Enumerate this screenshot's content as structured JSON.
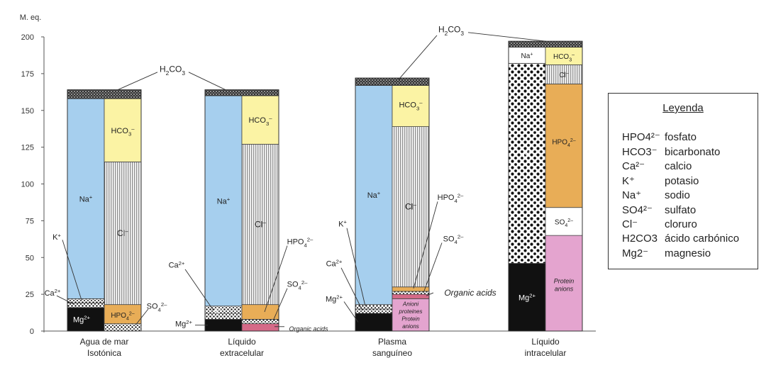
{
  "chart_data": {
    "type": "bar",
    "stacked": true,
    "ylabel": "M. eq.",
    "ylim": [
      0,
      200
    ],
    "yticks": [
      "0",
      "25",
      "50",
      "75",
      "100",
      "125",
      "150",
      "175",
      "200"
    ],
    "grid": false,
    "categories": [
      {
        "line1": "Agua de mar",
        "line2": "Isotónica"
      },
      {
        "line1": "Líquido",
        "line2": "extracelular"
      },
      {
        "line1": "Plasma",
        "line2": "sanguíneo"
      },
      {
        "line1": "Líquido",
        "line2": "intracelular"
      }
    ],
    "stacks": [
      {
        "cations": [
          {
            "ion": "Mg",
            "label": "Mg2+",
            "from": 0,
            "to": 16,
            "color": "#111111"
          },
          {
            "ion": "Ca",
            "label": "Ca2+",
            "from": 16,
            "to": 19,
            "color": "pattern-dots"
          },
          {
            "ion": "K",
            "label": "K+",
            "from": 19,
            "to": 22,
            "color": "pattern-dots"
          },
          {
            "ion": "Na",
            "label": "Na+",
            "from": 22,
            "to": 158,
            "color": "#a6cfee"
          }
        ],
        "anions": [
          {
            "ion": "SO4",
            "label": "SO42",
            "from": 0,
            "to": 5,
            "color": "pattern-dots"
          },
          {
            "ion": "HPO4",
            "label": "HPO42-",
            "from": 5,
            "to": 18,
            "color": "#e8ad57"
          },
          {
            "ion": "Cl",
            "label": "Cl-",
            "from": 18,
            "to": 115,
            "color": "pattern-lines"
          },
          {
            "ion": "HCO3",
            "label": "HCO3-",
            "from": 115,
            "to": 158,
            "color": "#fbf3a4"
          }
        ],
        "h2co3": {
          "from": 158,
          "to": 164
        }
      },
      {
        "cations": [
          {
            "ion": "Mg",
            "label": "Mg2+",
            "from": 0,
            "to": 8,
            "color": "#111111"
          },
          {
            "ion": "Ca",
            "label": "Ca2+",
            "from": 8,
            "to": 12,
            "color": "pattern-dots"
          },
          {
            "ion": "K",
            "label": "K+",
            "from": 12,
            "to": 17,
            "color": "pattern-dots"
          },
          {
            "ion": "Na",
            "label": "Na+",
            "from": 17,
            "to": 160,
            "color": "#a6cfee"
          }
        ],
        "anions": [
          {
            "ion": "Organic",
            "label": "Organic acids",
            "from": 0,
            "to": 5,
            "color": "#d56a88"
          },
          {
            "ion": "SO4",
            "label": "SO42-",
            "from": 5,
            "to": 8,
            "color": "pattern-dots"
          },
          {
            "ion": "HPO4",
            "label": "HPO42-",
            "from": 8,
            "to": 18,
            "color": "#e8ad57"
          },
          {
            "ion": "Cl",
            "label": "Cl-",
            "from": 18,
            "to": 127,
            "color": "pattern-lines"
          },
          {
            "ion": "HCO3",
            "label": "HCO3-",
            "from": 127,
            "to": 160,
            "color": "#fbf3a4"
          }
        ],
        "h2co3": {
          "from": 160,
          "to": 164
        }
      },
      {
        "cations": [
          {
            "ion": "Mg",
            "label": "Mg2+",
            "from": 0,
            "to": 12,
            "color": "#111111"
          },
          {
            "ion": "Ca",
            "label": "Ca2+",
            "from": 12,
            "to": 15,
            "color": "pattern-dots"
          },
          {
            "ion": "K",
            "label": "K+",
            "from": 15,
            "to": 18,
            "color": "pattern-dots"
          },
          {
            "ion": "Na",
            "label": "Na+",
            "from": 18,
            "to": 167,
            "color": "#a6cfee"
          }
        ],
        "anions": [
          {
            "ion": "Protein",
            "label": "Anioni proteines Protein anions",
            "from": 0,
            "to": 22,
            "color": "#e4a4cf"
          },
          {
            "ion": "Organic",
            "label": "Organic acids",
            "from": 22,
            "to": 25,
            "color": "#d56a88"
          },
          {
            "ion": "SO4",
            "label": "SO42-",
            "from": 25,
            "to": 27,
            "color": "pattern-dots"
          },
          {
            "ion": "HPO4",
            "label": "HPO42-",
            "from": 27,
            "to": 30,
            "color": "#e8ad57"
          },
          {
            "ion": "Cl",
            "label": "Cl-",
            "from": 30,
            "to": 139,
            "color": "pattern-lines"
          },
          {
            "ion": "HCO3",
            "label": "HCO3-",
            "from": 139,
            "to": 167,
            "color": "#fbf3a4"
          }
        ],
        "h2co3": {
          "from": 167,
          "to": 172
        }
      },
      {
        "cations": [
          {
            "ion": "Mg",
            "label": "Mg2+",
            "from": 0,
            "to": 46,
            "color": "#111111"
          },
          {
            "ion": "K",
            "label": "K+",
            "from": 46,
            "to": 182,
            "color": "pattern-dots-big"
          },
          {
            "ion": "Na",
            "label": "Na+",
            "from": 182,
            "to": 193,
            "color": "#ffffff"
          }
        ],
        "anions": [
          {
            "ion": "Protein",
            "label": "Protein anions",
            "from": 0,
            "to": 65,
            "color": "#e4a4cf"
          },
          {
            "ion": "SO4",
            "label": "SO42-",
            "from": 65,
            "to": 84,
            "color": "#ffffff"
          },
          {
            "ion": "HPO4",
            "label": "HPO42-",
            "from": 84,
            "to": 168,
            "color": "#e8ad57"
          },
          {
            "ion": "Cl",
            "label": "Cl-",
            "from": 168,
            "to": 181,
            "color": "pattern-lines"
          },
          {
            "ion": "HCO3",
            "label": "HCO3-",
            "from": 181,
            "to": 193,
            "color": "#fbf3a4"
          }
        ],
        "h2co3": {
          "from": 193,
          "to": 197
        }
      }
    ],
    "annotations": {
      "h2co3": "H2CO3",
      "organic_acids": "Organic acids"
    }
  },
  "legend": {
    "title": "Leyenda",
    "items": [
      {
        "symbol": "HPO4²⁻",
        "meaning": "fosfato"
      },
      {
        "symbol": "HCO3⁻",
        "meaning": "bicarbonato"
      },
      {
        "symbol": "Ca²⁻",
        "meaning": "calcio"
      },
      {
        "symbol": "K⁺",
        "meaning": "potasio"
      },
      {
        "symbol": "Na⁺",
        "meaning": "sodio"
      },
      {
        "symbol": "SO4²⁻",
        "meaning": "sulfato"
      },
      {
        "symbol": "Cl⁻",
        "meaning": "cloruro"
      },
      {
        "symbol": "H2CO3",
        "meaning": "ácido carbónico"
      },
      {
        "symbol": "Mg2⁻",
        "meaning": "magnesio"
      }
    ]
  }
}
